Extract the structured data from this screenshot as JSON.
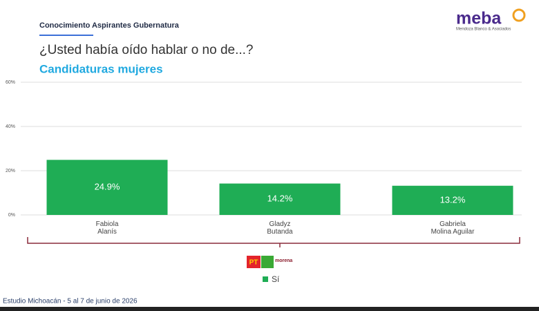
{
  "header": {
    "section": "Conocimiento Aspirantes Gubernatura",
    "question": "¿Usted había oído hablar o no de...?",
    "subtitle": "Candidaturas mujeres",
    "logo": "meba",
    "logo_caption": "Mendoza Blanco & Asociados"
  },
  "parties": {
    "pt": "PT",
    "morena": "morena"
  },
  "chart_data": {
    "type": "bar",
    "categories": [
      "Fabiola\nAlanís",
      "Gladyz\nButanda",
      "Gabriela\nMolina Aguilar"
    ],
    "series": [
      {
        "name": "Sí",
        "color": "#1fad55",
        "values": [
          24.9,
          14.2,
          13.2
        ],
        "value_labels": [
          "24.9%",
          "14.2%",
          "13.2%"
        ]
      }
    ],
    "ylim": [
      0,
      60
    ],
    "yticks": [
      {
        "value": 0,
        "label": "0%"
      },
      {
        "value": 20,
        "label": "20%"
      },
      {
        "value": 40,
        "label": "40%"
      },
      {
        "value": 60,
        "label": "60%"
      }
    ],
    "grid": true
  },
  "footer": "Estudio Michoacán - 5 al 7 de junio de 2026"
}
